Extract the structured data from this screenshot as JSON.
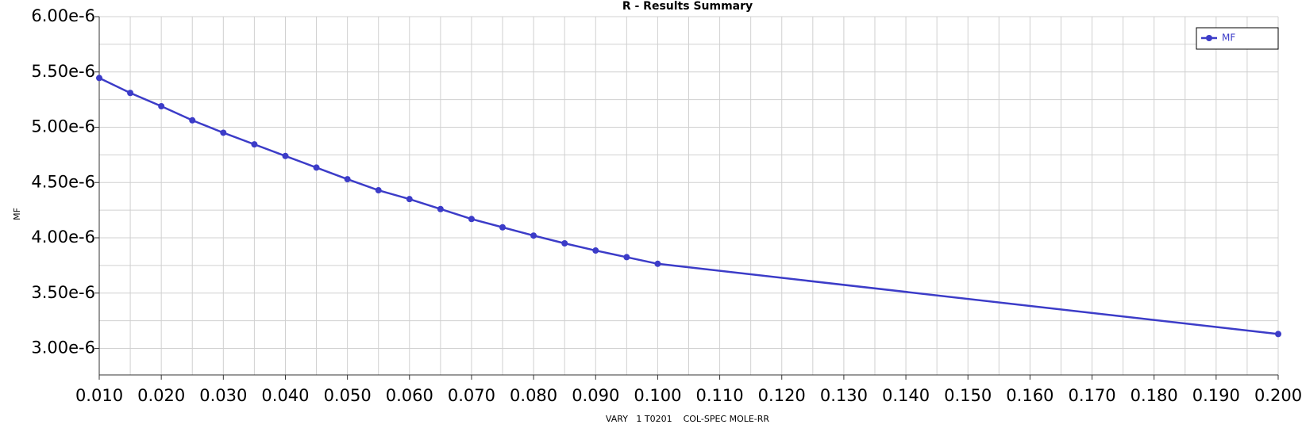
{
  "chart_data": {
    "type": "line",
    "title": "R - Results Summary",
    "x_label": "VARY   1 T0201    COL-SPEC MOLE-RR",
    "y_label": "MF",
    "x": [
      0.01,
      0.015,
      0.02,
      0.025,
      0.03,
      0.035,
      0.04,
      0.045,
      0.05,
      0.055,
      0.06,
      0.065,
      0.07,
      0.075,
      0.08,
      0.085,
      0.09,
      0.095,
      0.1,
      0.2
    ],
    "series": [
      {
        "name": "MF",
        "color": "#3c3cc8",
        "values": [
          5.445e-06,
          5.31e-06,
          5.19e-06,
          5.0625e-06,
          4.95e-06,
          4.845e-06,
          4.74e-06,
          4.635e-06,
          4.53e-06,
          4.43e-06,
          4.35e-06,
          4.26e-06,
          4.17e-06,
          4.095e-06,
          4.02e-06,
          3.95e-06,
          3.885e-06,
          3.825e-06,
          3.765e-06,
          3.13e-06
        ]
      }
    ],
    "xlim": [
      0.01,
      0.2
    ],
    "ylim": [
      2.76e-06,
      6e-06
    ],
    "xticks": [
      {
        "value": 0.01,
        "label": "0.010"
      },
      {
        "value": 0.02,
        "label": "0.020"
      },
      {
        "value": 0.03,
        "label": "0.030"
      },
      {
        "value": 0.04,
        "label": "0.040"
      },
      {
        "value": 0.05,
        "label": "0.050"
      },
      {
        "value": 0.06,
        "label": "0.060"
      },
      {
        "value": 0.07,
        "label": "0.070"
      },
      {
        "value": 0.08,
        "label": "0.080"
      },
      {
        "value": 0.09,
        "label": "0.090"
      },
      {
        "value": 0.1,
        "label": "0.100"
      },
      {
        "value": 0.11,
        "label": "0.110"
      },
      {
        "value": 0.12,
        "label": "0.120"
      },
      {
        "value": 0.13,
        "label": "0.130"
      },
      {
        "value": 0.14,
        "label": "0.140"
      },
      {
        "value": 0.15,
        "label": "0.150"
      },
      {
        "value": 0.16,
        "label": "0.160"
      },
      {
        "value": 0.17,
        "label": "0.170"
      },
      {
        "value": 0.18,
        "label": "0.180"
      },
      {
        "value": 0.19,
        "label": "0.190"
      },
      {
        "value": 0.2,
        "label": "0.200"
      }
    ],
    "xminorticks": [
      0.015,
      0.025,
      0.035,
      0.045,
      0.055,
      0.065,
      0.075,
      0.085,
      0.095,
      0.105,
      0.115,
      0.125,
      0.135,
      0.145,
      0.155,
      0.165,
      0.175,
      0.185,
      0.195
    ],
    "yticks": [
      {
        "value": 3e-06,
        "label": "3.00e-6"
      },
      {
        "value": 3.5e-06,
        "label": "3.50e-6"
      },
      {
        "value": 4e-06,
        "label": "4.00e-6"
      },
      {
        "value": 4.5e-06,
        "label": "4.50e-6"
      },
      {
        "value": 5e-06,
        "label": "5.00e-6"
      },
      {
        "value": 5.5e-06,
        "label": "5.50e-6"
      },
      {
        "value": 6e-06,
        "label": "6.00e-6"
      }
    ],
    "yminorticks": [
      2.75e-06,
      3.25e-06,
      3.75e-06,
      4.25e-06,
      4.75e-06,
      5.25e-06,
      5.75e-06
    ],
    "grid": true,
    "legend": "top-right"
  }
}
